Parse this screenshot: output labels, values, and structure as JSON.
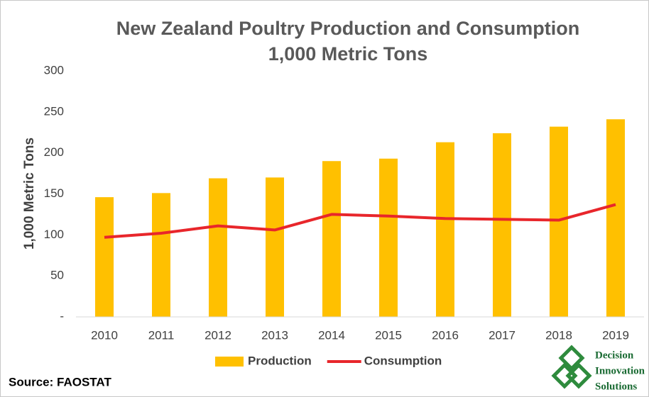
{
  "chart_data": {
    "type": "bar_line",
    "title": "New Zealand Poultry Production and Consumption",
    "subtitle": "1,000 Metric Tons",
    "y_label": "1,000 Metric Tons",
    "categories": [
      "2010",
      "2011",
      "2012",
      "2013",
      "2014",
      "2015",
      "2016",
      "2017",
      "2018",
      "2019"
    ],
    "series": [
      {
        "name": "Production",
        "type": "bar",
        "color": "#ffc000",
        "values": [
          146,
          151,
          169,
          170,
          190,
          193,
          213,
          224,
          232,
          241
        ]
      },
      {
        "name": "Consumption",
        "type": "line",
        "color": "#e8262b",
        "values": [
          97,
          102,
          111,
          106,
          125,
          123,
          120,
          119,
          118,
          137
        ]
      }
    ],
    "ylim": [
      0,
      300
    ],
    "yticks": [
      {
        "value": 0,
        "label": "-"
      },
      50,
      100,
      150,
      200,
      250,
      300
    ],
    "grid": false,
    "legend": "bottom",
    "source": "Source: FAOSTAT",
    "logo": [
      "Decision",
      "Innovation",
      "Solutions"
    ]
  }
}
